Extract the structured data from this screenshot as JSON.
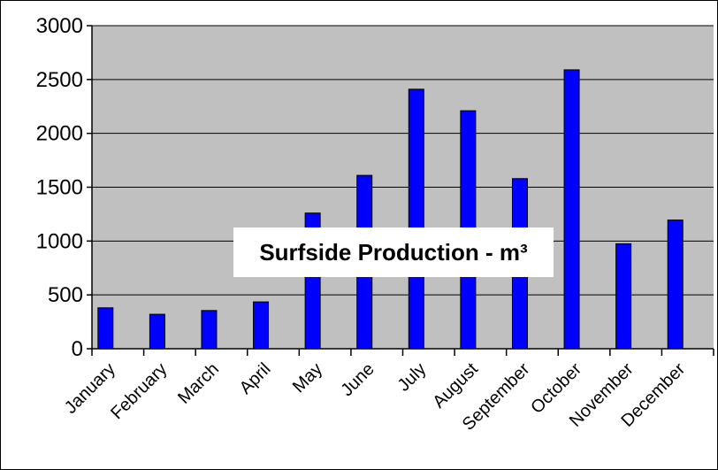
{
  "chart_data": {
    "type": "bar",
    "title": "Surfside Production - m³",
    "xlabel": "",
    "ylabel": "",
    "categories": [
      "January",
      "February",
      "March",
      "April",
      "May",
      "June",
      "July",
      "August",
      "September",
      "October",
      "November",
      "December"
    ],
    "values": [
      380,
      320,
      355,
      435,
      1260,
      1610,
      2410,
      2210,
      1580,
      2590,
      975,
      1195
    ],
    "ylim": [
      0,
      3000
    ],
    "yticks": [
      0,
      500,
      1000,
      1500,
      2000,
      2500,
      3000
    ],
    "ytick_labels": [
      "0",
      "500",
      "1000",
      "1500",
      "2000",
      "2500",
      "3000"
    ],
    "grid": true,
    "legend": "none",
    "colors": {
      "bar": "#0000ff",
      "bar_border": "#000000",
      "plot_background": "#c0c0c0",
      "gridline": "#000000",
      "title_box": "#ffffff"
    }
  }
}
